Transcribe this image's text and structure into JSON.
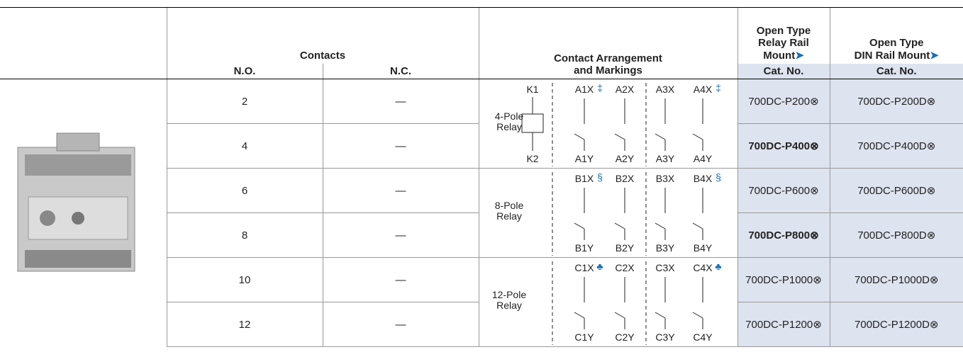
{
  "header": {
    "contacts": "Contacts",
    "no": "N.O.",
    "nc": "N.C.",
    "arrangement": [
      "Contact Arrangement",
      "and Markings"
    ],
    "relay_rail": {
      "lines": [
        "Open Type",
        "Relay Rail",
        "Mount"
      ],
      "symbol": "➤"
    },
    "din_rail": {
      "lines": [
        "Open Type",
        "DIN Rail Mount"
      ],
      "symbol": "➤"
    },
    "cat_no_relay": "Cat. No.",
    "cat_no_din": "Cat. No."
  },
  "rows": [
    {
      "no": "2",
      "nc": "—",
      "cat_relay": "700DC-P200⊗",
      "cat_din": "700DC-P200D⊗",
      "bold": false
    },
    {
      "no": "4",
      "nc": "—",
      "cat_relay": "700DC-P400⊗",
      "cat_din": "700DC-P400D⊗",
      "bold": true
    },
    {
      "no": "6",
      "nc": "—",
      "cat_relay": "700DC-P600⊗",
      "cat_din": "700DC-P600D⊗",
      "bold": false
    },
    {
      "no": "8",
      "nc": "—",
      "cat_relay": "700DC-P800⊗",
      "cat_din": "700DC-P800D⊗",
      "bold": true
    },
    {
      "no": "10",
      "nc": "—",
      "cat_relay": "700DC-P1000⊗",
      "cat_din": "700DC-P1000D⊗",
      "bold": false
    },
    {
      "no": "12",
      "nc": "—",
      "cat_relay": "700DC-P1200⊗",
      "cat_din": "700DC-P1200D⊗",
      "bold": false
    }
  ],
  "diagrams": [
    {
      "label": [
        "4-Pole",
        "Relay"
      ],
      "coil": [
        "K1",
        "K2"
      ],
      "top": [
        "A1X",
        "A2X",
        "A3X",
        "A4X"
      ],
      "bottom": [
        "A1Y",
        "A2Y",
        "A3Y",
        "A4Y"
      ],
      "symbols": [
        "‡",
        "",
        "",
        "‡"
      ]
    },
    {
      "label": [
        "8-Pole",
        "Relay"
      ],
      "top": [
        "B1X",
        "B2X",
        "B3X",
        "B4X"
      ],
      "bottom": [
        "B1Y",
        "B2Y",
        "B3Y",
        "B4Y"
      ],
      "symbols": [
        "§",
        "",
        "",
        "§"
      ]
    },
    {
      "label": [
        "12-Pole",
        "Relay"
      ],
      "top": [
        "C1X",
        "C2X",
        "C3X",
        "C4X"
      ],
      "bottom": [
        "C1Y",
        "C2Y",
        "C3Y",
        "C4Y"
      ],
      "symbols": [
        "♣",
        "",
        "",
        "♣"
      ]
    }
  ]
}
